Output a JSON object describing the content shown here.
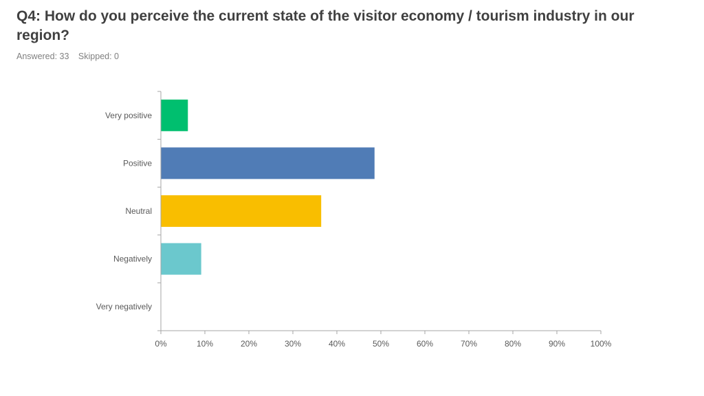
{
  "question": {
    "title": "Q4: How do you perceive the current state of the visitor economy / tourism industry in our region?",
    "answered": "Answered: 33",
    "skipped": "Skipped: 0"
  },
  "colors": {
    "very_positive": "#00bf6f",
    "positive": "#507cb6",
    "neutral": "#f9be00",
    "negatively": "#6bc8cd",
    "very_negatively": "#7d7d7d"
  },
  "chart_data": {
    "type": "bar",
    "orientation": "horizontal",
    "categories": [
      "Very positive",
      "Positive",
      "Neutral",
      "Negatively",
      "Very negatively"
    ],
    "values": [
      6.06,
      48.48,
      36.36,
      9.09,
      0
    ],
    "bar_colors": [
      "#00bf6f",
      "#507cb6",
      "#f9be00",
      "#6bc8cd",
      "#7d7d7d"
    ],
    "xlim": [
      0,
      100
    ],
    "x_ticks": [
      "0%",
      "10%",
      "20%",
      "30%",
      "40%",
      "50%",
      "60%",
      "70%",
      "80%",
      "90%",
      "100%"
    ],
    "grid": false,
    "title": "",
    "xlabel": "",
    "ylabel": ""
  }
}
